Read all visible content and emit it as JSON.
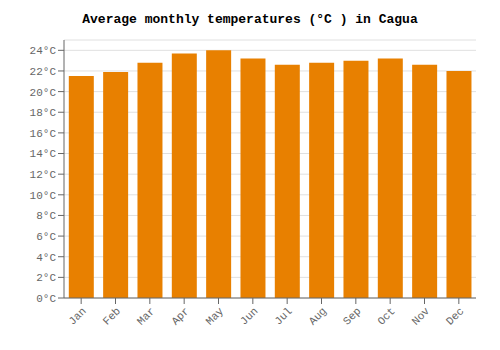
{
  "chart_data": {
    "type": "bar",
    "title": "Average monthly temperatures (°C ) in Cagua",
    "categories": [
      "Jan",
      "Feb",
      "Mar",
      "Apr",
      "May",
      "Jun",
      "Jul",
      "Aug",
      "Sep",
      "Oct",
      "Nov",
      "Dec"
    ],
    "values": [
      21.5,
      21.9,
      22.8,
      23.7,
      24.0,
      23.2,
      22.6,
      22.8,
      23.0,
      23.2,
      22.6,
      22.0
    ],
    "color": "#E88000",
    "ylim": [
      0,
      25
    ],
    "yticks": [
      {
        "value": 0,
        "label": "0°C"
      },
      {
        "value": 2,
        "label": "2°C"
      },
      {
        "value": 4,
        "label": "4°C"
      },
      {
        "value": 6,
        "label": "6°C"
      },
      {
        "value": 8,
        "label": "8°C"
      },
      {
        "value": 10,
        "label": "10°C"
      },
      {
        "value": 12,
        "label": "12°C"
      },
      {
        "value": 14,
        "label": "14°C"
      },
      {
        "value": 16,
        "label": "16°C"
      },
      {
        "value": 18,
        "label": "18°C"
      },
      {
        "value": 20,
        "label": "20°C"
      },
      {
        "value": 22,
        "label": "22°C"
      },
      {
        "value": 24,
        "label": "24°C"
      }
    ],
    "grid": true
  }
}
